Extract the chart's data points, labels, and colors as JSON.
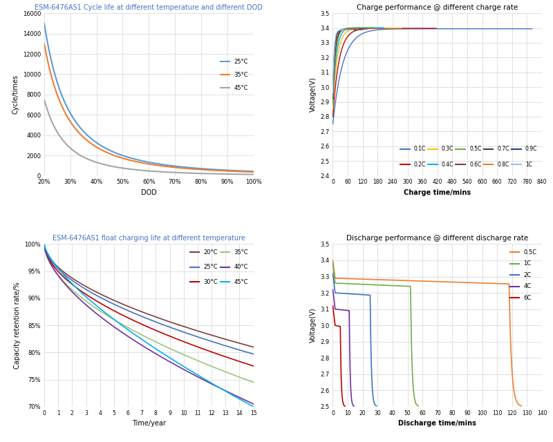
{
  "plot1": {
    "title": "ESM-6476AS1 Cycle life at different temperature and different DOD",
    "title_color": "#4472c4",
    "xlabel": "DOD",
    "ylabel": "Cycle/times",
    "xlim": [
      0.2,
      1.0
    ],
    "ylim": [
      0,
      16000
    ],
    "yticks": [
      0,
      2000,
      4000,
      6000,
      8000,
      10000,
      12000,
      14000,
      16000
    ],
    "xtick_labels": [
      "20%",
      "30%",
      "40%",
      "50%",
      "60%",
      "70%",
      "80%",
      "90%",
      "100%"
    ],
    "curves": [
      {
        "label": "25°C",
        "color": "#5b9bd5",
        "a": 15000,
        "b": 2.2
      },
      {
        "label": "35°C",
        "color": "#ed7d31",
        "a": 13000,
        "b": 2.2
      },
      {
        "label": "45°C",
        "color": "#a5a5a5",
        "a": 7500,
        "b": 2.5
      }
    ]
  },
  "plot2": {
    "title": "Charge performance @ different charge rate",
    "xlabel": "Charge time/mins",
    "ylabel": "Voltage(V)",
    "xlim": [
      0,
      840
    ],
    "ylim": [
      2.4,
      3.5
    ],
    "yticks": [
      2.4,
      2.5,
      2.6,
      2.7,
      2.8,
      2.9,
      3.0,
      3.1,
      3.2,
      3.3,
      3.4,
      3.5
    ],
    "xticks": [
      0,
      60,
      120,
      180,
      240,
      300,
      360,
      420,
      480,
      540,
      600,
      660,
      720,
      780,
      840
    ],
    "curves": [
      {
        "label": "0.1C",
        "color": "#4472c4",
        "v0": 2.75,
        "plateau": 3.395,
        "tau": 40,
        "t_end": 800
      },
      {
        "label": "0.2C",
        "color": "#c00000",
        "v0": 2.8,
        "plateau": 3.398,
        "tau": 25,
        "t_end": 415
      },
      {
        "label": "0.3C",
        "color": "#ffc000",
        "v0": 2.85,
        "plateau": 3.4,
        "tau": 18,
        "t_end": 275
      },
      {
        "label": "0.4C",
        "color": "#00b0f0",
        "v0": 2.88,
        "plateau": 3.402,
        "tau": 14,
        "t_end": 205
      },
      {
        "label": "0.5C",
        "color": "#70ad47",
        "v0": 2.9,
        "plateau": 3.402,
        "tau": 11,
        "t_end": 165
      },
      {
        "label": "0.6C",
        "color": "#7b3f3f",
        "v0": 2.92,
        "plateau": 3.395,
        "tau": 9,
        "t_end": 138
      },
      {
        "label": "0.7C",
        "color": "#404040",
        "v0": 2.93,
        "plateau": 3.39,
        "tau": 8,
        "t_end": 118
      },
      {
        "label": "0.8C",
        "color": "#ed7d31",
        "v0": 2.94,
        "plateau": 3.392,
        "tau": 7,
        "t_end": 103
      },
      {
        "label": "0.9C",
        "color": "#264478",
        "v0": 2.95,
        "plateau": 3.388,
        "tau": 6,
        "t_end": 92
      },
      {
        "label": "1C",
        "color": "#9dc3e6",
        "v0": 2.96,
        "plateau": 3.387,
        "tau": 5,
        "t_end": 83
      }
    ]
  },
  "plot3": {
    "title": "ESM-6476AS1 float charging life at different temperature",
    "title_color": "#4472c4",
    "xlabel": "Time/year",
    "ylabel": "Capacity retention rate/%",
    "xlim": [
      0,
      15
    ],
    "ylim": [
      0.7,
      1.0
    ],
    "ytick_vals": [
      0.7,
      0.75,
      0.8,
      0.85,
      0.9,
      0.95,
      1.0
    ],
    "ytick_labels": [
      "70%",
      "75%",
      "80%",
      "85%",
      "90%",
      "95%",
      "100%"
    ],
    "curves": [
      {
        "label": "20°C",
        "color": "#7b3f3f",
        "end_y": 0.81,
        "exp": 0.55
      },
      {
        "label": "25°C",
        "color": "#4472c4",
        "end_y": 0.797,
        "exp": 0.55
      },
      {
        "label": "30°C",
        "color": "#c00000",
        "end_y": 0.775,
        "exp": 0.55
      },
      {
        "label": "35°C",
        "color": "#9dc57a",
        "end_y": 0.745,
        "exp": 0.55
      },
      {
        "label": "40°C",
        "color": "#7030a0",
        "end_y": 0.705,
        "exp": 0.6
      },
      {
        "label": "45°C",
        "color": "#00b0f0",
        "end_y": 0.7,
        "exp": 0.7
      }
    ]
  },
  "plot4": {
    "title": "Discharge performance @ different discharge rate",
    "xlabel": "Discharge time/mins",
    "ylabel": "Voltage(V)",
    "xlim": [
      0,
      140
    ],
    "ylim": [
      2.5,
      3.5
    ],
    "yticks": [
      2.5,
      2.6,
      2.7,
      2.8,
      2.9,
      3.0,
      3.1,
      3.2,
      3.3,
      3.4,
      3.5
    ],
    "xticks": [
      0,
      10,
      20,
      30,
      40,
      50,
      60,
      70,
      80,
      90,
      100,
      110,
      120,
      130,
      140
    ],
    "curves": [
      {
        "label": "0.5C",
        "color": "#ed7d31",
        "v_start": 3.4,
        "v_init_drop": 3.29,
        "v_plateau": 3.28,
        "drop_start": 118,
        "drop_end": 126,
        "slope": 0.0003
      },
      {
        "label": "1C",
        "color": "#70ad47",
        "v_start": 3.38,
        "v_init_drop": 3.26,
        "v_plateau": 3.25,
        "drop_start": 52,
        "drop_end": 57,
        "slope": 0.0004
      },
      {
        "label": "2C",
        "color": "#4472c4",
        "v_start": 3.32,
        "v_init_drop": 3.2,
        "v_plateau": 3.19,
        "drop_start": 25,
        "drop_end": 29,
        "slope": 0.0006
      },
      {
        "label": "4C",
        "color": "#7030a0",
        "v_start": 3.22,
        "v_init_drop": 3.1,
        "v_plateau": 3.09,
        "drop_start": 11,
        "drop_end": 14,
        "slope": 0.001
      },
      {
        "label": "6C",
        "color": "#c00000",
        "v_start": 3.12,
        "v_init_drop": 3.0,
        "v_plateau": 2.99,
        "drop_start": 5,
        "drop_end": 8,
        "slope": 0.002
      }
    ]
  }
}
